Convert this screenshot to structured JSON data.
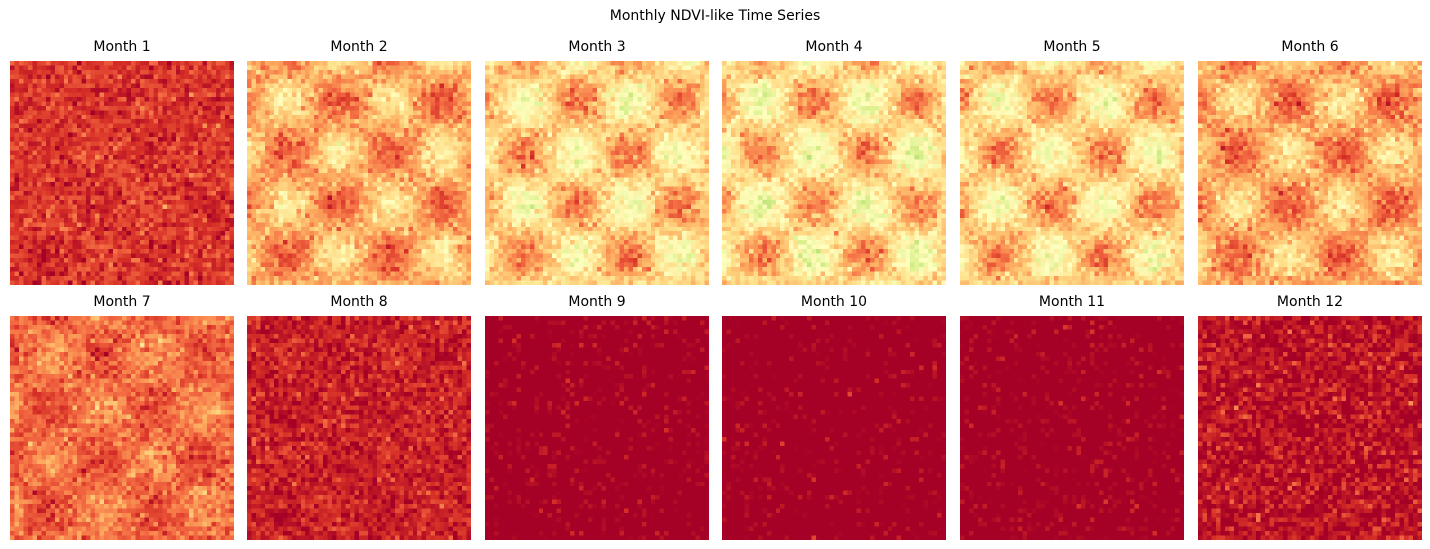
{
  "chart_data": {
    "type": "heatmap",
    "title": "Monthly NDVI-like Time Series",
    "colormap": "RdYlGn",
    "value_range": [
      0,
      1
    ],
    "grid_size": [
      50,
      50
    ],
    "axes_visible": false,
    "panels": [
      {
        "title": "Month 1",
        "mean": 0.11,
        "amplitude": 0.02,
        "noise": 0.05
      },
      {
        "title": "Month 2",
        "mean": 0.3,
        "amplitude": 0.14,
        "noise": 0.05
      },
      {
        "title": "Month 3",
        "mean": 0.37,
        "amplitude": 0.16,
        "noise": 0.05
      },
      {
        "title": "Month 4",
        "mean": 0.39,
        "amplitude": 0.17,
        "noise": 0.05
      },
      {
        "title": "Month 5",
        "mean": 0.37,
        "amplitude": 0.16,
        "noise": 0.05
      },
      {
        "title": "Month 6",
        "mean": 0.3,
        "amplitude": 0.14,
        "noise": 0.05
      },
      {
        "title": "Month 7",
        "mean": 0.2,
        "amplitude": 0.07,
        "noise": 0.05
      },
      {
        "title": "Month 8",
        "mean": 0.07,
        "amplitude": 0.02,
        "noise": 0.05
      },
      {
        "title": "Month 9",
        "mean": -0.04,
        "amplitude": 0.0,
        "noise": 0.05
      },
      {
        "title": "Month 10",
        "mean": -0.05,
        "amplitude": 0.0,
        "noise": 0.05
      },
      {
        "title": "Month 11",
        "mean": -0.04,
        "amplitude": 0.0,
        "noise": 0.05
      },
      {
        "title": "Month 12",
        "mean": 0.04,
        "amplitude": 0.0,
        "noise": 0.06
      }
    ]
  }
}
